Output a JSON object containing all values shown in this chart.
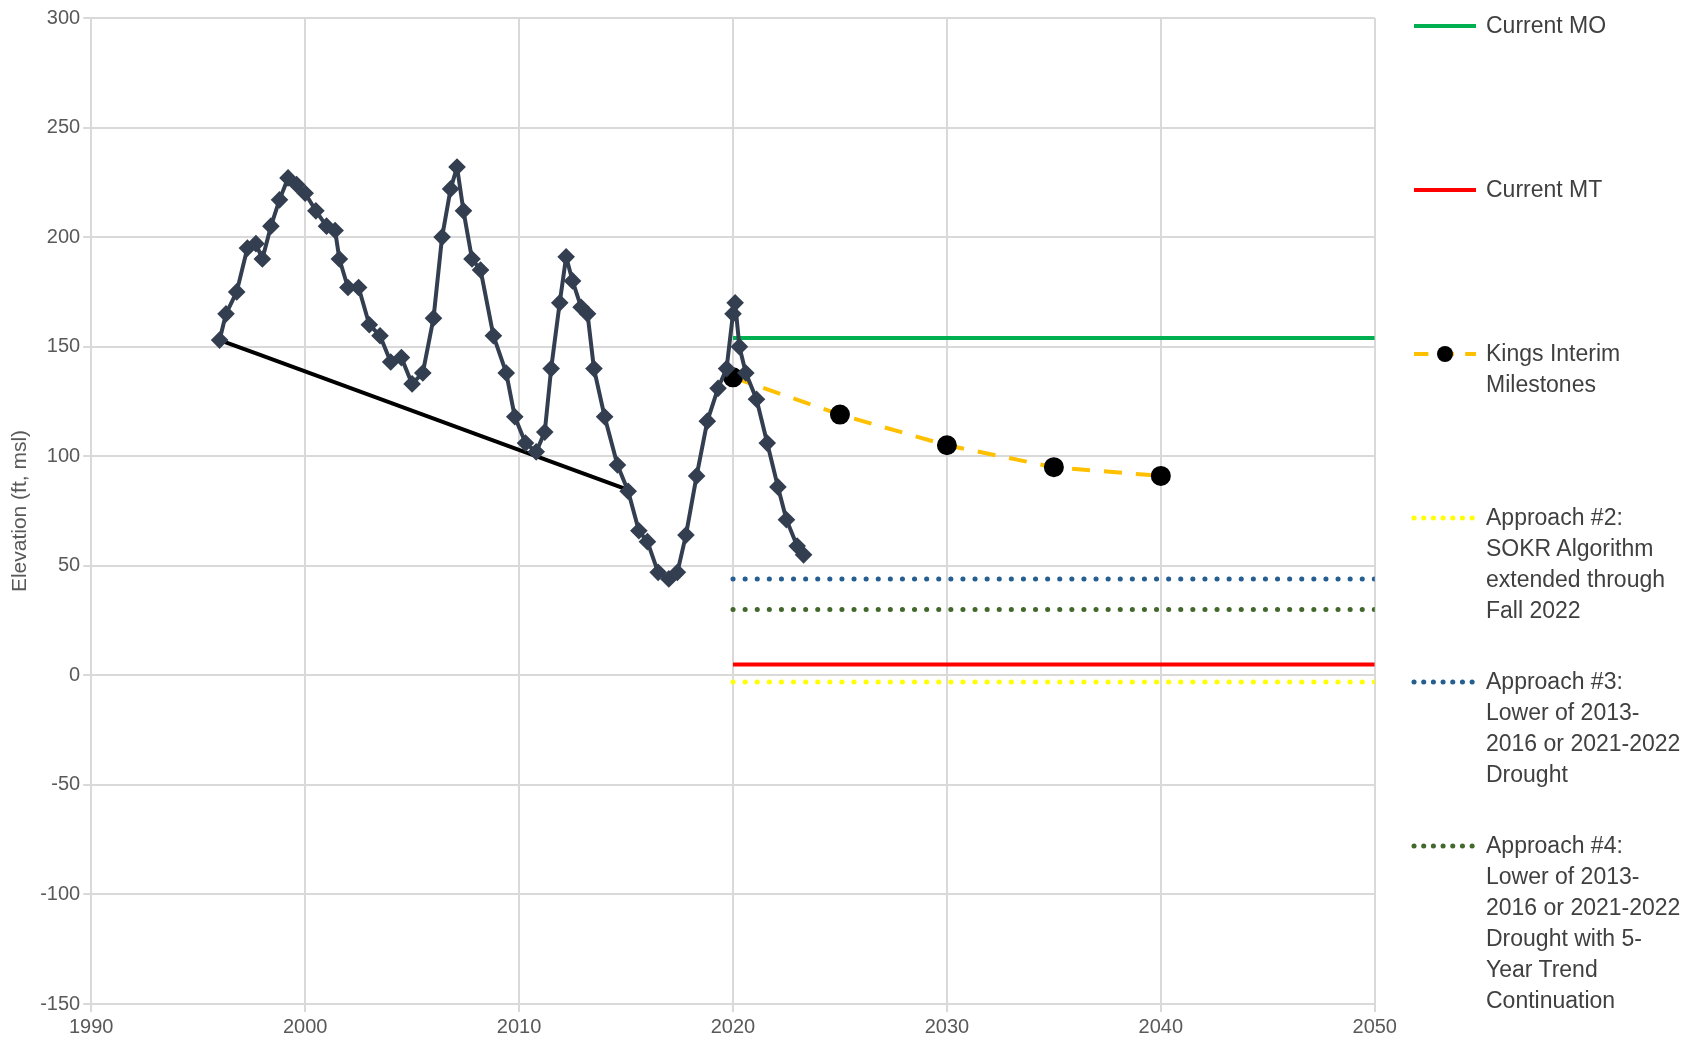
{
  "chart_data": {
    "type": "line",
    "ylabel": "Elevation (ft, msl)",
    "xlim": [
      1990,
      2050
    ],
    "xticks": [
      1990,
      2000,
      2010,
      2020,
      2030,
      2040,
      2050
    ],
    "ylim": [
      -150,
      300
    ],
    "yticks": [
      -150,
      -100,
      -50,
      0,
      50,
      100,
      150,
      200,
      250,
      300
    ],
    "grid": true,
    "legend": "right",
    "series": [
      {
        "color": "#333f50",
        "marker": "diamond",
        "x": [
          1996.0,
          1996.3,
          1996.8,
          1997.3,
          1997.7,
          1998.0,
          1998.4,
          1998.8,
          1999.2,
          1999.6,
          2000.0,
          2000.5,
          2001.0,
          2001.4,
          2001.6,
          2002.0,
          2002.5,
          2003.0,
          2003.5,
          2004.0,
          2004.5,
          2005.0,
          2005.5,
          2006.0,
          2006.4,
          2006.8,
          2007.1,
          2007.4,
          2007.8,
          2008.2,
          2008.8,
          2009.4,
          2009.8,
          2010.3,
          2010.8,
          2011.2,
          2011.5,
          2011.9,
          2012.2,
          2012.5,
          2012.9,
          2013.2,
          2013.5,
          2014.0,
          2014.6,
          2015.1,
          2015.6,
          2016.0,
          2016.5,
          2017.0,
          2017.4,
          2017.8,
          2018.3,
          2018.8,
          2019.3,
          2019.7,
          2020.0,
          2020.1,
          2020.3,
          2020.6,
          2021.1,
          2021.6,
          2022.1,
          2022.5,
          2023.0,
          2023.3
        ],
        "values": [
          153,
          165,
          175,
          195,
          197,
          190,
          205,
          217,
          227,
          224,
          220,
          212,
          205,
          203,
          190,
          177,
          177,
          160,
          155,
          143,
          145,
          133,
          138,
          163,
          200,
          222,
          232,
          212,
          190,
          185,
          155,
          138,
          118,
          106,
          102,
          111,
          140,
          170,
          191,
          180,
          168,
          165,
          140,
          118,
          96,
          84,
          66,
          61,
          47,
          44,
          47,
          64,
          91,
          116,
          131,
          140,
          165,
          170,
          150,
          138,
          126,
          106,
          86,
          71,
          59,
          55
        ]
      },
      {
        "color": "#000000",
        "marker": "none",
        "line_style": "solid",
        "x": [
          1996,
          2015
        ],
        "values": [
          153,
          85
        ]
      },
      {
        "name": "Current MO",
        "color": "#00b050",
        "marker": "none",
        "line_style": "solid",
        "x": [
          2020,
          2050
        ],
        "values": [
          154,
          154
        ]
      },
      {
        "name": "Current MT",
        "color": "#ff0000",
        "marker": "none",
        "line_style": "solid",
        "x": [
          2020,
          2050
        ],
        "values": [
          5,
          5
        ]
      },
      {
        "name": "Kings Interim Milestones",
        "color": "#ffc000",
        "marker": "circle",
        "line_style": "dashed",
        "x": [
          2020,
          2025,
          2030,
          2035,
          2040
        ],
        "values": [
          136,
          119,
          105,
          95,
          91
        ]
      },
      {
        "name": "Approach #2: SOKR Algorithm extended through Fall 2022",
        "color": "#ffff00",
        "marker": "none",
        "line_style": "dotted",
        "x": [
          2020,
          2050
        ],
        "values": [
          -3,
          -3
        ]
      },
      {
        "name": "Approach #3: Lower of 2013-2016 or 2021-2022 Drought",
        "color": "#255e91",
        "marker": "none",
        "line_style": "dotted",
        "x": [
          2020,
          2050
        ],
        "values": [
          44,
          44
        ]
      },
      {
        "name": "Approach #4: Lower of 2013-2016 or 2021-2022 Drought with 5-Year Trend Continuation",
        "color": "#43682b",
        "marker": "none",
        "line_style": "dotted",
        "x": [
          2020,
          2050
        ],
        "values": [
          30,
          30
        ]
      }
    ]
  }
}
